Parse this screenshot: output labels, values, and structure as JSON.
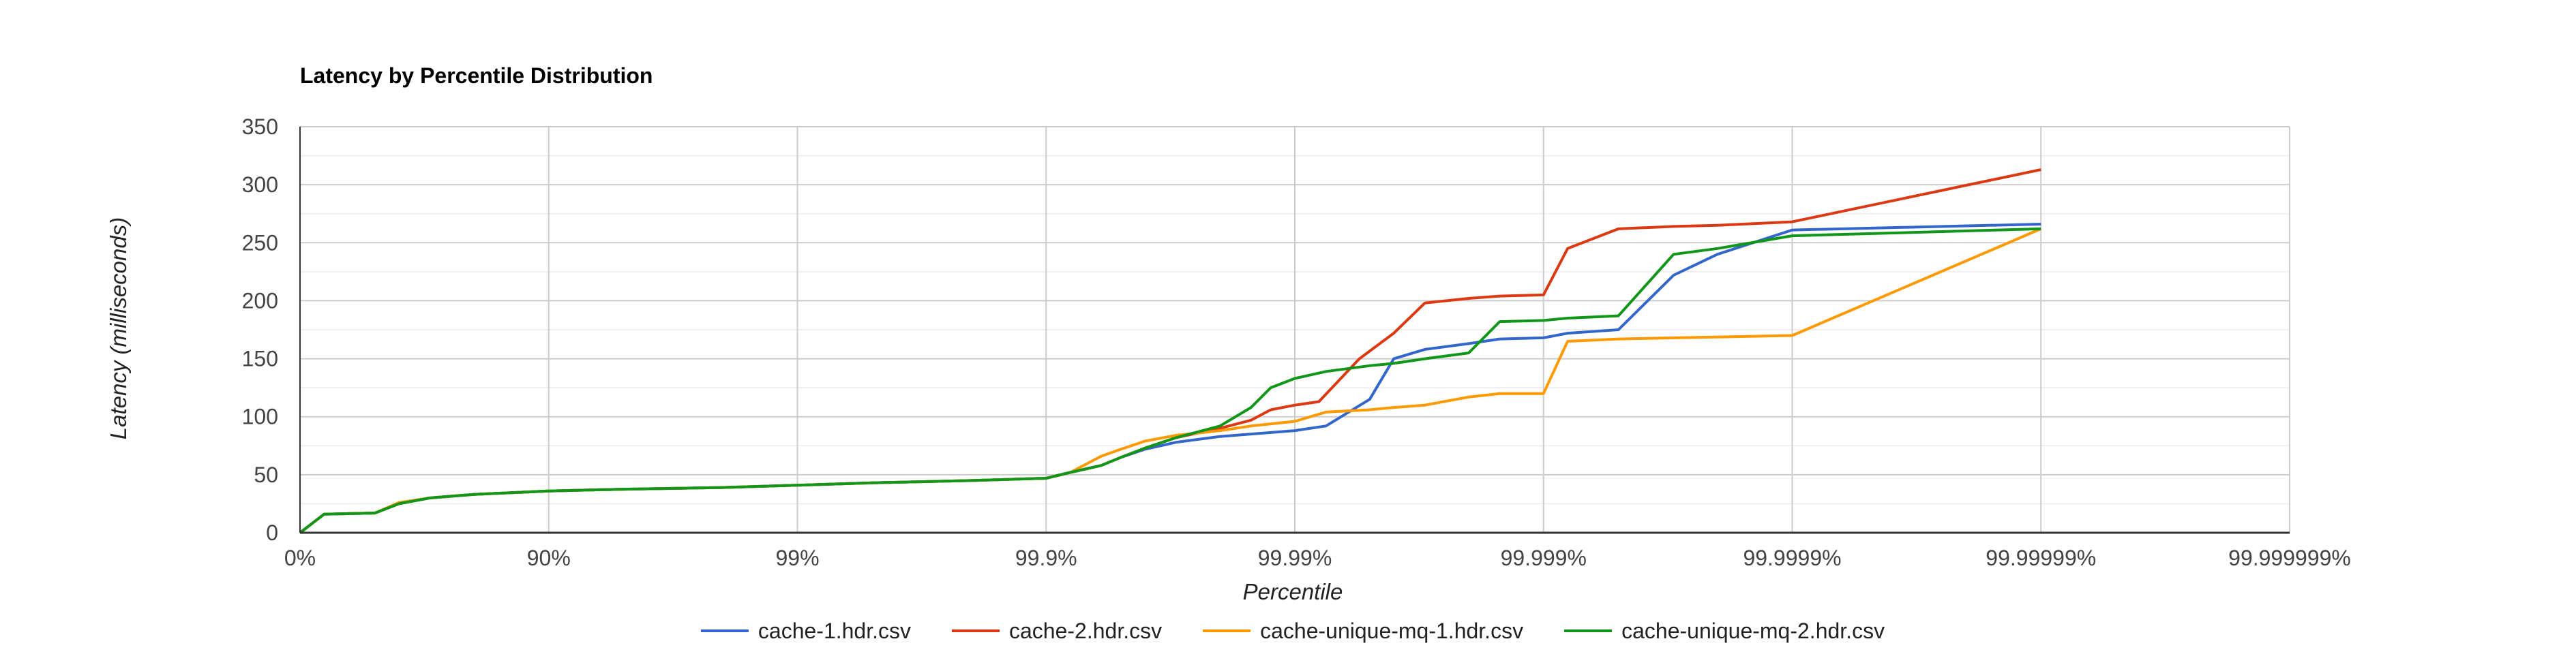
{
  "chart_data": {
    "type": "line",
    "title": "Latency by Percentile Distribution",
    "xlabel": "Percentile",
    "ylabel": "Latency (milliseconds)",
    "x_scale": "log-percentile",
    "x_ticks": [
      "0%",
      "90%",
      "99%",
      "99.9%",
      "99.99%",
      "99.999%",
      "99.9999%",
      "99.99999%",
      "99.999999%"
    ],
    "y_ticks": [
      "0",
      "50",
      "100",
      "150",
      "200",
      "250",
      "300",
      "350"
    ],
    "ylim": [
      0,
      350
    ],
    "grid": true,
    "legend_position": "bottom",
    "series": [
      {
        "name": "cache-1.hdr.csv",
        "color": "#3366cc",
        "x": [
          0,
          20,
          50,
          60,
          70,
          80,
          90,
          95,
          98,
          99,
          99.5,
          99.8,
          99.9,
          99.92,
          99.94,
          99.95,
          99.96,
          99.97,
          99.98,
          99.99,
          99.9925,
          99.995,
          99.996,
          99.997,
          99.998,
          99.9985,
          99.999,
          99.9992,
          99.9995,
          99.9997,
          99.9998,
          99.9999,
          99.99999
        ],
        "y": [
          0,
          16,
          17,
          25,
          30,
          33,
          36,
          37.5,
          39,
          41,
          43,
          45,
          47,
          52,
          58,
          65,
          72,
          78,
          83,
          88,
          92,
          115,
          150,
          158,
          163,
          167,
          168,
          172,
          175,
          222,
          240,
          261,
          266
        ]
      },
      {
        "name": "cache-2.hdr.csv",
        "color": "#dc3912",
        "x": [
          0,
          20,
          50,
          60,
          70,
          80,
          90,
          95,
          98,
          99,
          99.5,
          99.8,
          99.9,
          99.92,
          99.94,
          99.95,
          99.96,
          99.97,
          99.98,
          99.985,
          99.9875,
          99.99,
          99.992,
          99.9945,
          99.996,
          99.997,
          99.998,
          99.9985,
          99.999,
          99.9992,
          99.9995,
          99.9997,
          99.9998,
          99.9999,
          99.99999
        ],
        "y": [
          0,
          16,
          17,
          25,
          30,
          33,
          36,
          37.5,
          39,
          41,
          43,
          45,
          47,
          52,
          58,
          65,
          73,
          82,
          90,
          97,
          106,
          110,
          113,
          150,
          172,
          198,
          202,
          204,
          205,
          245,
          262,
          264,
          265,
          268,
          313
        ]
      },
      {
        "name": "cache-unique-mq-1.hdr.csv",
        "color": "#ff9900",
        "x": [
          0,
          20,
          50,
          60,
          70,
          80,
          90,
          95,
          98,
          99,
          99.5,
          99.8,
          99.9,
          99.92,
          99.94,
          99.95,
          99.96,
          99.97,
          99.98,
          99.985,
          99.99,
          99.9925,
          99.995,
          99.996,
          99.997,
          99.998,
          99.9985,
          99.999,
          99.9992,
          99.9995,
          99.9999,
          99.99999
        ],
        "y": [
          0,
          16,
          17,
          26,
          30,
          33,
          36,
          37.5,
          39,
          41,
          43,
          45,
          47,
          52,
          66,
          72,
          79,
          84,
          88,
          92,
          96,
          104,
          106,
          108,
          110,
          117,
          120,
          120,
          165,
          167,
          170,
          262
        ]
      },
      {
        "name": "cache-unique-mq-2.hdr.csv",
        "color": "#109618",
        "x": [
          0,
          20,
          50,
          60,
          70,
          80,
          90,
          95,
          98,
          99,
          99.5,
          99.8,
          99.9,
          99.92,
          99.94,
          99.95,
          99.96,
          99.97,
          99.98,
          99.985,
          99.9875,
          99.99,
          99.9925,
          99.995,
          99.996,
          99.997,
          99.998,
          99.9985,
          99.999,
          99.9992,
          99.9995,
          99.9997,
          99.9998,
          99.9999,
          99.99999
        ],
        "y": [
          0,
          16,
          17,
          25,
          30,
          33,
          36,
          37.5,
          39,
          41,
          43,
          45,
          47,
          52,
          58,
          65,
          73,
          82,
          92,
          108,
          125,
          133,
          139,
          144,
          146,
          150,
          155,
          182,
          183,
          185,
          187,
          240,
          245,
          256,
          262
        ]
      }
    ]
  }
}
